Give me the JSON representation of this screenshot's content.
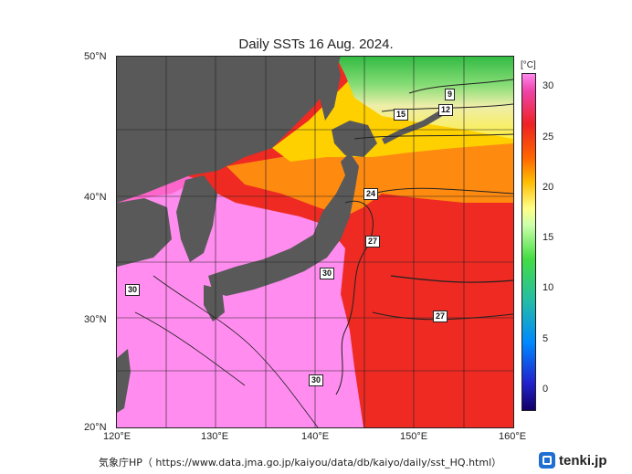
{
  "map": {
    "title": "Daily SSTs 16 Aug. 2024.",
    "lat_labels": [
      "50°N",
      "40°N",
      "30°N",
      "20°N"
    ],
    "lon_labels": [
      "120°E",
      "130°E",
      "140°E",
      "150°E",
      "160°E"
    ],
    "colorbar": {
      "unit": "[°C]",
      "ticks": [
        "30",
        "25",
        "20",
        "15",
        "10",
        "5",
        "0"
      ]
    },
    "contour_labels": [
      "9",
      "12",
      "15",
      "24",
      "27",
      "30",
      "27",
      "30",
      "30"
    ],
    "colors": {
      "land": "#595959",
      "sst_30": "#ff88ee",
      "sst_27": "#ee2222",
      "sst_24": "#ff8800",
      "sst_20": "#ffdd00",
      "sst_15": "#ffffaa",
      "sst_12": "#44cc44"
    }
  },
  "footer": {
    "source": "気象庁HP（ https://www.data.jma.go.jp/kaiyou/data/db/kaiyo/daily/sst_HQ.html）",
    "brand": "tenki.jp"
  }
}
